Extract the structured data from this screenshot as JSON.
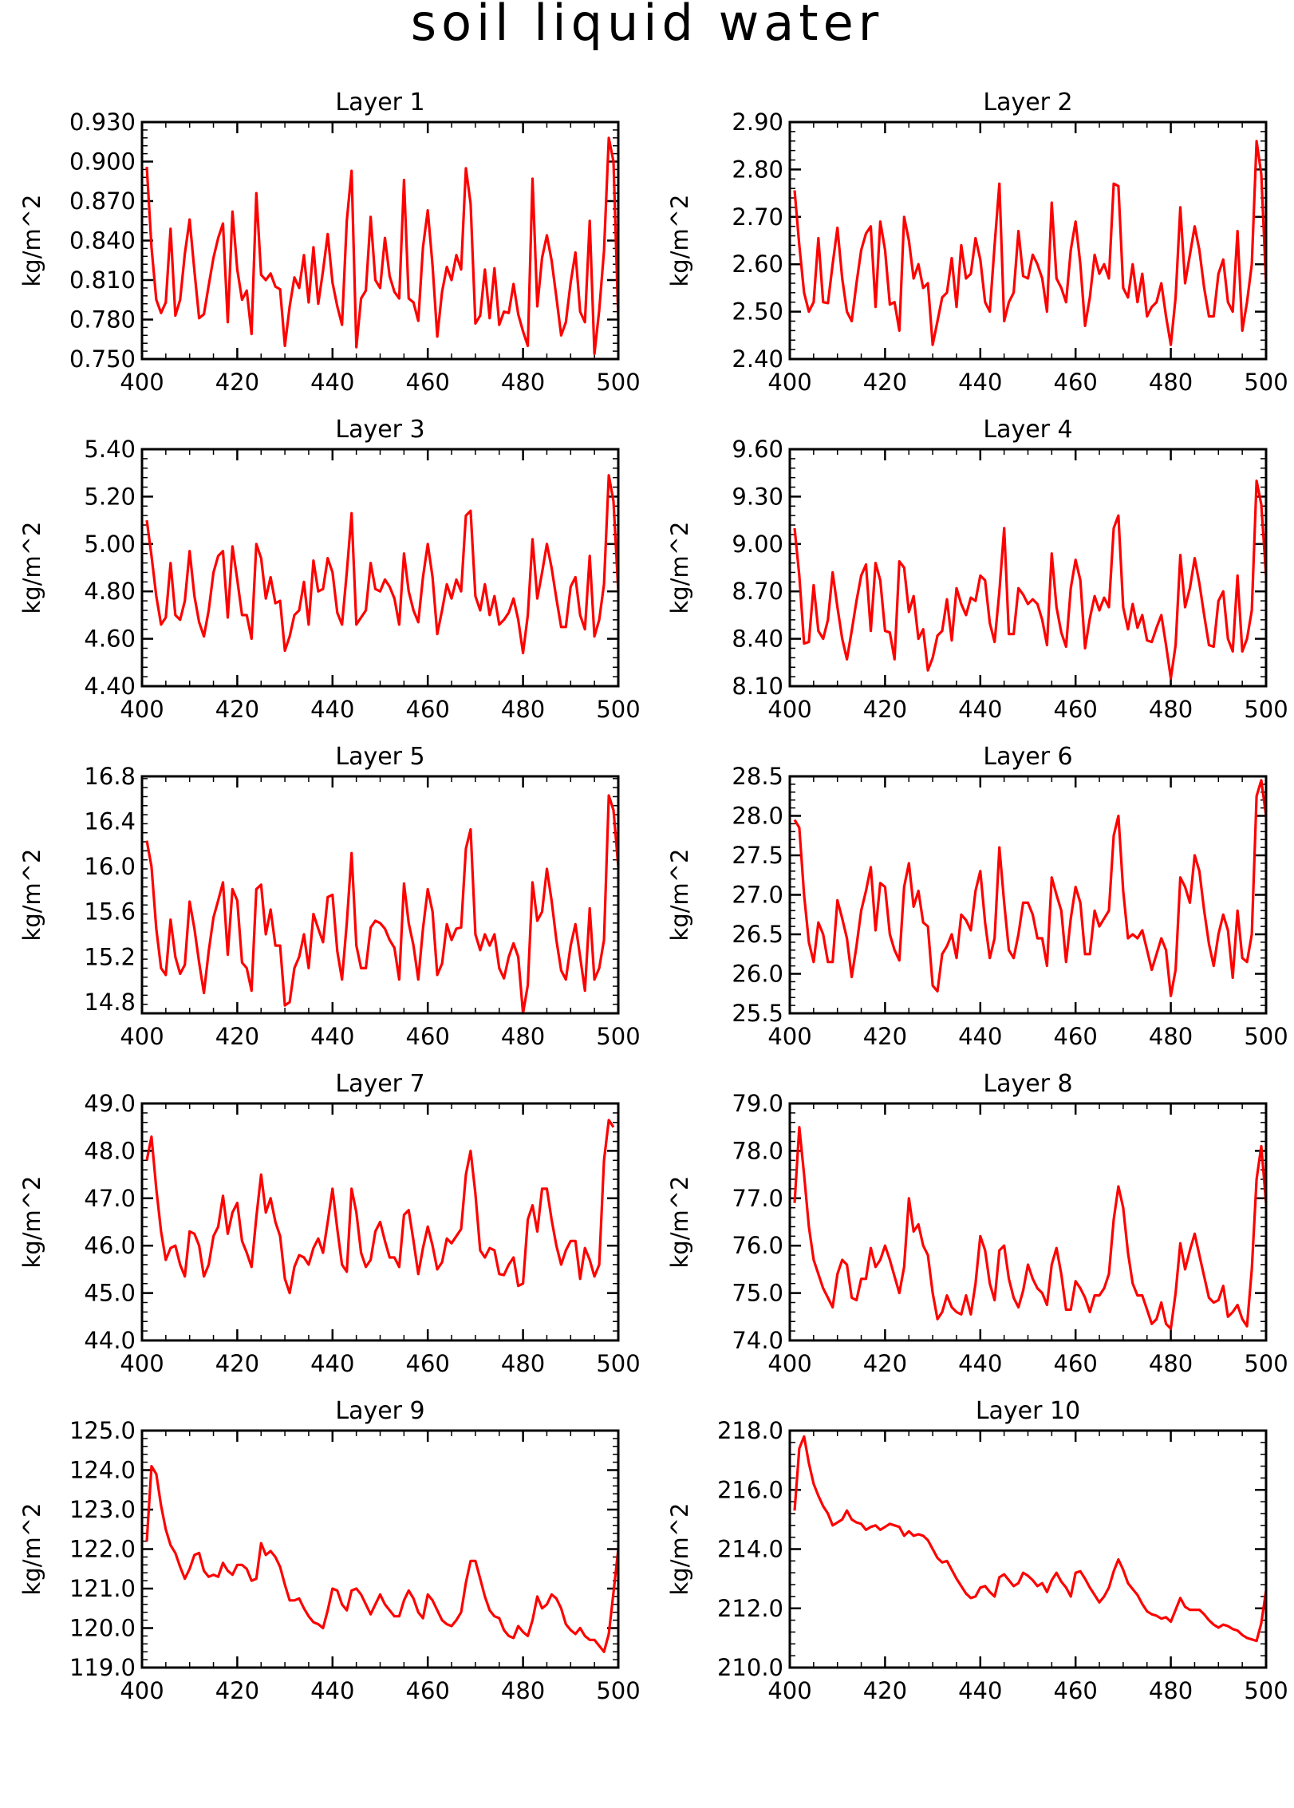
{
  "figure": {
    "title": "soil liquid water"
  },
  "chart_data": [
    {
      "type": "line",
      "title": "Layer 1",
      "ylabel": "kg/m^2",
      "xlim": [
        400,
        500
      ],
      "ylim": [
        0.75,
        0.93
      ],
      "x_ticks": [
        "400",
        "420",
        "440",
        "460",
        "480",
        "500"
      ],
      "y_ticks": [
        "0.750",
        "0.780",
        "0.810",
        "0.840",
        "0.870",
        "0.900",
        "0.930"
      ],
      "x_start": 401,
      "color": "#ff0000",
      "values": [
        0.896,
        0.835,
        0.795,
        0.785,
        0.793,
        0.849,
        0.783,
        0.795,
        0.83,
        0.856,
        0.817,
        0.781,
        0.784,
        0.806,
        0.827,
        0.842,
        0.853,
        0.778,
        0.862,
        0.818,
        0.795,
        0.802,
        0.769,
        0.876,
        0.814,
        0.81,
        0.815,
        0.805,
        0.803,
        0.76,
        0.79,
        0.812,
        0.804,
        0.829,
        0.793,
        0.835,
        0.792,
        0.817,
        0.845,
        0.808,
        0.79,
        0.776,
        0.855,
        0.893,
        0.759,
        0.796,
        0.802,
        0.858,
        0.81,
        0.804,
        0.842,
        0.813,
        0.801,
        0.796,
        0.886,
        0.796,
        0.793,
        0.779,
        0.835,
        0.863,
        0.821,
        0.767,
        0.801,
        0.82,
        0.81,
        0.829,
        0.818,
        0.895,
        0.868,
        0.777,
        0.783,
        0.818,
        0.781,
        0.819,
        0.776,
        0.786,
        0.785,
        0.807,
        0.784,
        0.771,
        0.76,
        0.887,
        0.79,
        0.827,
        0.844,
        0.825,
        0.797,
        0.768,
        0.778,
        0.808,
        0.831,
        0.786,
        0.778,
        0.855,
        0.754,
        0.787,
        0.832,
        0.918,
        0.9,
        0.78
      ]
    },
    {
      "type": "line",
      "title": "Layer 2",
      "ylabel": "kg/m^2",
      "xlim": [
        400,
        500
      ],
      "ylim": [
        2.4,
        2.9
      ],
      "x_ticks": [
        "400",
        "420",
        "440",
        "460",
        "480",
        "500"
      ],
      "y_ticks": [
        "2.40",
        "2.50",
        "2.60",
        "2.70",
        "2.80",
        "2.90"
      ],
      "x_start": 401,
      "color": "#ff0000",
      "values": [
        2.756,
        2.64,
        2.54,
        2.5,
        2.52,
        2.655,
        2.52,
        2.518,
        2.6,
        2.677,
        2.57,
        2.5,
        2.48,
        2.56,
        2.63,
        2.665,
        2.68,
        2.51,
        2.69,
        2.63,
        2.515,
        2.52,
        2.46,
        2.7,
        2.65,
        2.57,
        2.6,
        2.55,
        2.56,
        2.43,
        2.48,
        2.53,
        2.54,
        2.613,
        2.51,
        2.64,
        2.57,
        2.58,
        2.655,
        2.61,
        2.52,
        2.5,
        2.64,
        2.77,
        2.48,
        2.52,
        2.54,
        2.67,
        2.575,
        2.57,
        2.62,
        2.6,
        2.57,
        2.5,
        2.73,
        2.57,
        2.55,
        2.52,
        2.63,
        2.69,
        2.6,
        2.47,
        2.53,
        2.62,
        2.58,
        2.6,
        2.57,
        2.77,
        2.765,
        2.55,
        2.53,
        2.6,
        2.52,
        2.58,
        2.49,
        2.51,
        2.52,
        2.56,
        2.49,
        2.43,
        2.53,
        2.72,
        2.56,
        2.62,
        2.68,
        2.63,
        2.55,
        2.49,
        2.49,
        2.58,
        2.61,
        2.52,
        2.5,
        2.67,
        2.46,
        2.52,
        2.6,
        2.86,
        2.79,
        2.56
      ]
    },
    {
      "type": "line",
      "title": "Layer 3",
      "ylabel": "kg/m^2",
      "xlim": [
        400,
        500
      ],
      "ylim": [
        4.4,
        5.4
      ],
      "x_ticks": [
        "400",
        "420",
        "440",
        "460",
        "480",
        "500"
      ],
      "y_ticks": [
        "4.40",
        "4.60",
        "4.80",
        "5.00",
        "5.20",
        "5.40"
      ],
      "x_start": 401,
      "color": "#ff0000",
      "values": [
        5.1,
        4.95,
        4.78,
        4.66,
        4.69,
        4.92,
        4.7,
        4.68,
        4.76,
        4.97,
        4.78,
        4.67,
        4.61,
        4.72,
        4.88,
        4.95,
        4.97,
        4.69,
        4.99,
        4.85,
        4.7,
        4.7,
        4.6,
        5.0,
        4.94,
        4.77,
        4.86,
        4.75,
        4.76,
        4.55,
        4.61,
        4.7,
        4.72,
        4.84,
        4.66,
        4.93,
        4.8,
        4.81,
        4.94,
        4.88,
        4.71,
        4.66,
        4.88,
        5.13,
        4.66,
        4.69,
        4.72,
        4.92,
        4.81,
        4.8,
        4.85,
        4.82,
        4.77,
        4.66,
        4.96,
        4.8,
        4.72,
        4.67,
        4.86,
        5.0,
        4.86,
        4.62,
        4.72,
        4.83,
        4.77,
        4.85,
        4.8,
        5.12,
        5.14,
        4.78,
        4.72,
        4.83,
        4.7,
        4.78,
        4.66,
        4.68,
        4.71,
        4.77,
        4.68,
        4.54,
        4.7,
        5.02,
        4.77,
        4.88,
        5.0,
        4.9,
        4.77,
        4.65,
        4.65,
        4.82,
        4.86,
        4.7,
        4.64,
        4.95,
        4.61,
        4.68,
        4.83,
        5.29,
        5.18,
        4.8
      ]
    },
    {
      "type": "line",
      "title": "Layer 4",
      "ylabel": "kg/m^2",
      "xlim": [
        400,
        500
      ],
      "ylim": [
        8.1,
        9.6
      ],
      "x_ticks": [
        "400",
        "420",
        "440",
        "460",
        "480",
        "500"
      ],
      "y_ticks": [
        "8.10",
        "8.40",
        "8.70",
        "9.00",
        "9.30",
        "9.60"
      ],
      "x_start": 401,
      "color": "#ff0000",
      "values": [
        9.1,
        8.8,
        8.37,
        8.38,
        8.74,
        8.45,
        8.4,
        8.52,
        8.82,
        8.6,
        8.4,
        8.27,
        8.45,
        8.64,
        8.8,
        8.87,
        8.45,
        8.88,
        8.77,
        8.45,
        8.44,
        8.27,
        8.89,
        8.85,
        8.57,
        8.67,
        8.4,
        8.46,
        8.2,
        8.28,
        8.42,
        8.45,
        8.65,
        8.39,
        8.72,
        8.62,
        8.55,
        8.66,
        8.64,
        8.8,
        8.77,
        8.5,
        8.38,
        8.7,
        9.1,
        8.43,
        8.43,
        8.72,
        8.68,
        8.62,
        8.65,
        8.62,
        8.52,
        8.36,
        8.94,
        8.6,
        8.44,
        8.35,
        8.72,
        8.9,
        8.77,
        8.34,
        8.53,
        8.67,
        8.58,
        8.66,
        8.6,
        9.1,
        9.18,
        8.6,
        8.46,
        8.62,
        8.47,
        8.55,
        8.39,
        8.38,
        8.47,
        8.55,
        8.36,
        8.15,
        8.36,
        8.93,
        8.6,
        8.72,
        8.91,
        8.75,
        8.55,
        8.36,
        8.35,
        8.64,
        8.7,
        8.4,
        8.32,
        8.8,
        8.32,
        8.4,
        8.58,
        9.4,
        9.25,
        8.8
      ]
    },
    {
      "type": "line",
      "title": "Layer 5",
      "ylabel": "kg/m^2",
      "xlim": [
        400,
        500
      ],
      "ylim": [
        14.7,
        16.8
      ],
      "x_ticks": [
        "400",
        "420",
        "440",
        "460",
        "480",
        "500"
      ],
      "y_ticks": [
        "14.8",
        "15.2",
        "15.6",
        "16.0",
        "16.4",
        "16.8"
      ],
      "x_start": 401,
      "color": "#ff0000",
      "values": [
        16.23,
        16.0,
        15.45,
        15.1,
        15.04,
        15.53,
        15.2,
        15.05,
        15.13,
        15.69,
        15.45,
        15.15,
        14.88,
        15.25,
        15.55,
        15.7,
        15.86,
        15.22,
        15.8,
        15.7,
        15.15,
        15.1,
        14.9,
        15.8,
        15.84,
        15.4,
        15.62,
        15.3,
        15.3,
        14.77,
        14.8,
        15.1,
        15.2,
        15.4,
        15.1,
        15.58,
        15.45,
        15.33,
        15.73,
        15.75,
        15.25,
        15.0,
        15.5,
        16.12,
        15.3,
        15.1,
        15.1,
        15.46,
        15.52,
        15.5,
        15.45,
        15.35,
        15.28,
        15.0,
        15.85,
        15.5,
        15.3,
        15.0,
        15.45,
        15.8,
        15.6,
        15.04,
        15.14,
        15.49,
        15.35,
        15.45,
        15.46,
        16.16,
        16.33,
        15.4,
        15.26,
        15.4,
        15.3,
        15.4,
        15.1,
        15.01,
        15.2,
        15.32,
        15.2,
        14.7,
        14.95,
        15.86,
        15.52,
        15.6,
        15.98,
        15.7,
        15.35,
        15.08,
        15.0,
        15.3,
        15.49,
        15.2,
        14.9,
        15.63,
        15.0,
        15.1,
        15.35,
        16.63,
        16.5,
        16.0
      ]
    },
    {
      "type": "line",
      "title": "Layer 6",
      "ylabel": "kg/m^2",
      "xlim": [
        400,
        500
      ],
      "ylim": [
        25.5,
        28.5
      ],
      "x_ticks": [
        "400",
        "420",
        "440",
        "460",
        "480",
        "500"
      ],
      "y_ticks": [
        "25.5",
        "26.0",
        "26.5",
        "27.0",
        "27.5",
        "28.0",
        "28.5"
      ],
      "x_start": 401,
      "color": "#ff0000",
      "values": [
        27.95,
        27.85,
        27.0,
        26.4,
        26.15,
        26.65,
        26.5,
        26.15,
        26.15,
        26.93,
        26.7,
        26.45,
        25.96,
        26.35,
        26.8,
        27.05,
        27.35,
        26.55,
        27.15,
        27.1,
        26.5,
        26.3,
        26.17,
        27.1,
        27.4,
        26.85,
        27.05,
        26.65,
        26.6,
        25.85,
        25.78,
        26.25,
        26.35,
        26.5,
        26.2,
        26.75,
        26.68,
        26.55,
        27.05,
        27.3,
        26.65,
        26.2,
        26.45,
        27.6,
        26.9,
        26.3,
        26.2,
        26.5,
        26.9,
        26.9,
        26.75,
        26.45,
        26.45,
        26.1,
        27.22,
        27.0,
        26.8,
        26.15,
        26.7,
        27.1,
        26.9,
        26.25,
        26.25,
        26.8,
        26.6,
        26.7,
        26.8,
        27.75,
        28.0,
        27.05,
        26.45,
        26.5,
        26.45,
        26.55,
        26.3,
        26.05,
        26.25,
        26.45,
        26.3,
        25.72,
        26.05,
        27.22,
        27.1,
        26.9,
        27.5,
        27.3,
        26.8,
        26.38,
        26.1,
        26.5,
        26.75,
        26.55,
        25.95,
        26.8,
        26.2,
        26.15,
        26.5,
        28.25,
        28.45,
        28.0
      ]
    },
    {
      "type": "line",
      "title": "Layer 7",
      "ylabel": "kg/m^2",
      "xlim": [
        400,
        500
      ],
      "ylim": [
        44.0,
        49.0
      ],
      "x_ticks": [
        "400",
        "420",
        "440",
        "460",
        "480",
        "500"
      ],
      "y_ticks": [
        "44.0",
        "45.0",
        "46.0",
        "47.0",
        "48.0",
        "49.0"
      ],
      "x_start": 401,
      "color": "#ff0000",
      "values": [
        47.8,
        48.3,
        47.2,
        46.3,
        45.7,
        45.95,
        46.0,
        45.6,
        45.35,
        46.3,
        46.25,
        46.0,
        45.35,
        45.6,
        46.2,
        46.4,
        47.05,
        46.25,
        46.7,
        46.9,
        46.1,
        45.85,
        45.55,
        46.6,
        47.5,
        46.7,
        47.0,
        46.5,
        46.2,
        45.3,
        45.0,
        45.55,
        45.8,
        45.75,
        45.6,
        45.95,
        46.15,
        45.85,
        46.5,
        47.2,
        46.35,
        45.6,
        45.45,
        47.2,
        46.7,
        45.85,
        45.55,
        45.7,
        46.3,
        46.5,
        46.1,
        45.75,
        45.75,
        45.55,
        46.65,
        46.75,
        46.1,
        45.4,
        45.95,
        46.4,
        46.0,
        45.5,
        45.65,
        46.15,
        46.05,
        46.2,
        46.35,
        47.5,
        48.0,
        47.1,
        45.9,
        45.75,
        45.95,
        45.9,
        45.4,
        45.38,
        45.6,
        45.75,
        45.15,
        45.2,
        46.55,
        46.85,
        46.3,
        47.2,
        47.2,
        46.55,
        46.0,
        45.6,
        45.9,
        46.1,
        46.1,
        45.3,
        45.95,
        45.7,
        45.35,
        45.6,
        47.8,
        48.65,
        48.5
      ]
    },
    {
      "type": "line",
      "title": "Layer 8",
      "ylabel": "kg/m^2",
      "xlim": [
        400,
        500
      ],
      "ylim": [
        74.0,
        79.0
      ],
      "x_ticks": [
        "400",
        "420",
        "440",
        "460",
        "480",
        "500"
      ],
      "y_ticks": [
        "74.0",
        "75.0",
        "76.0",
        "77.0",
        "78.0",
        "79.0"
      ],
      "x_start": 401,
      "color": "#ff0000",
      "values": [
        76.9,
        78.5,
        77.5,
        76.4,
        75.7,
        75.4,
        75.1,
        74.9,
        74.7,
        75.4,
        75.7,
        75.6,
        74.9,
        74.85,
        75.3,
        75.3,
        75.95,
        75.55,
        75.7,
        76.0,
        75.7,
        75.35,
        75.0,
        75.55,
        77.0,
        76.3,
        76.45,
        76.0,
        75.8,
        75.0,
        74.45,
        74.6,
        74.95,
        74.7,
        74.6,
        74.55,
        74.95,
        74.55,
        75.2,
        76.2,
        75.9,
        75.2,
        74.85,
        75.9,
        76.0,
        75.3,
        74.9,
        74.7,
        75.05,
        75.6,
        75.3,
        75.1,
        75.0,
        74.75,
        75.6,
        75.95,
        75.4,
        74.65,
        74.65,
        75.25,
        75.1,
        74.9,
        74.6,
        74.95,
        74.95,
        75.1,
        75.4,
        76.55,
        77.25,
        76.8,
        75.85,
        75.2,
        74.95,
        74.95,
        74.65,
        74.35,
        74.45,
        74.8,
        74.35,
        74.25,
        75.0,
        76.05,
        75.5,
        75.9,
        76.25,
        75.8,
        75.35,
        74.9,
        74.8,
        74.85,
        75.15,
        74.5,
        74.6,
        74.75,
        74.45,
        74.3,
        75.5,
        77.4,
        78.1,
        76.9
      ]
    },
    {
      "type": "line",
      "title": "Layer 9",
      "ylabel": "kg/m^2",
      "xlim": [
        400,
        500
      ],
      "ylim": [
        119.0,
        125.0
      ],
      "x_ticks": [
        "400",
        "420",
        "440",
        "460",
        "480",
        "500"
      ],
      "y_ticks": [
        "119.0",
        "120.0",
        "121.0",
        "122.0",
        "123.0",
        "124.0",
        "125.0"
      ],
      "x_start": 401,
      "color": "#ff0000",
      "values": [
        122.2,
        124.1,
        123.9,
        123.1,
        122.5,
        122.1,
        121.9,
        121.55,
        121.25,
        121.5,
        121.85,
        121.9,
        121.45,
        121.3,
        121.35,
        121.3,
        121.65,
        121.45,
        121.35,
        121.6,
        121.6,
        121.5,
        121.2,
        121.25,
        122.15,
        121.85,
        121.95,
        121.8,
        121.55,
        121.1,
        120.7,
        120.7,
        120.75,
        120.5,
        120.3,
        120.15,
        120.1,
        120.0,
        120.45,
        121.0,
        120.95,
        120.6,
        120.45,
        120.95,
        121.0,
        120.85,
        120.6,
        120.35,
        120.6,
        120.85,
        120.6,
        120.45,
        120.3,
        120.3,
        120.7,
        120.95,
        120.75,
        120.4,
        120.25,
        120.85,
        120.7,
        120.45,
        120.2,
        120.1,
        120.05,
        120.2,
        120.4,
        121.15,
        121.7,
        121.7,
        121.25,
        120.8,
        120.45,
        120.3,
        120.25,
        119.95,
        119.8,
        119.75,
        120.05,
        119.9,
        119.8,
        120.2,
        120.8,
        120.5,
        120.6,
        120.85,
        120.75,
        120.5,
        120.1,
        119.95,
        119.85,
        120.0,
        119.8,
        119.7,
        119.7,
        119.55,
        119.4,
        119.85,
        120.9,
        122.0
      ]
    },
    {
      "type": "line",
      "title": "Layer 10",
      "ylabel": "kg/m^2",
      "xlim": [
        400,
        500
      ],
      "ylim": [
        210.0,
        218.0
      ],
      "x_ticks": [
        "400",
        "420",
        "440",
        "460",
        "480",
        "500"
      ],
      "y_ticks": [
        "210.0",
        "212.0",
        "214.0",
        "216.0",
        "218.0"
      ],
      "x_start": 401,
      "color": "#ff0000",
      "values": [
        215.3,
        217.4,
        217.8,
        216.9,
        216.2,
        215.8,
        215.45,
        215.2,
        214.8,
        214.9,
        215.0,
        215.3,
        215.0,
        214.9,
        214.85,
        214.65,
        214.75,
        214.8,
        214.65,
        214.75,
        214.85,
        214.8,
        214.75,
        214.45,
        214.6,
        214.45,
        214.5,
        214.45,
        214.3,
        214.0,
        213.7,
        213.55,
        213.6,
        213.3,
        213.0,
        212.75,
        212.5,
        212.35,
        212.4,
        212.7,
        212.75,
        212.55,
        212.4,
        213.05,
        213.15,
        212.95,
        212.75,
        212.85,
        213.2,
        213.1,
        212.95,
        212.75,
        212.85,
        212.55,
        212.95,
        213.2,
        212.9,
        212.7,
        212.4,
        213.2,
        213.25,
        213.0,
        212.7,
        212.45,
        212.2,
        212.4,
        212.7,
        213.25,
        213.65,
        213.3,
        212.85,
        212.65,
        212.45,
        212.15,
        211.9,
        211.8,
        211.75,
        211.65,
        211.7,
        211.55,
        211.95,
        212.35,
        212.05,
        211.95,
        211.95,
        211.95,
        211.8,
        211.6,
        211.45,
        211.35,
        211.45,
        211.4,
        211.3,
        211.25,
        211.1,
        211.0,
        210.95,
        210.9,
        211.5,
        212.6
      ]
    }
  ]
}
